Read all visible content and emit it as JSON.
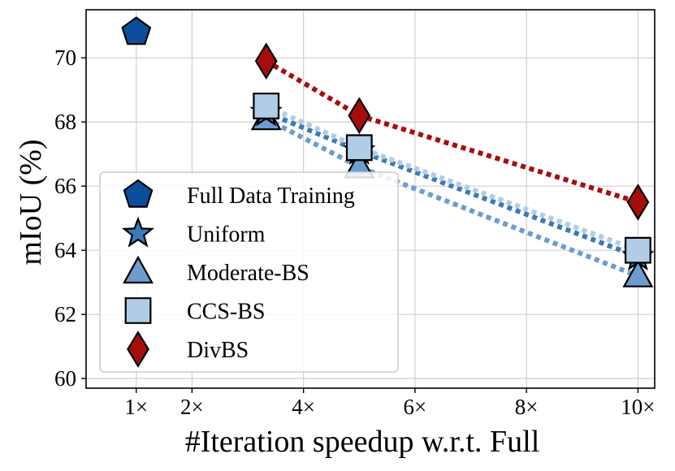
{
  "chart_data": {
    "type": "scatter",
    "xlabel": "#Iteration speedup w.r.t. Full",
    "ylabel": "mIoU (%)",
    "xlim": [
      0.1,
      10.3
    ],
    "ylim": [
      59.7,
      71.5
    ],
    "xticks": [
      1,
      2,
      4,
      6,
      8,
      10
    ],
    "xtick_labels": [
      "1×",
      "2×",
      "4×",
      "6×",
      "8×",
      "10×"
    ],
    "yticks": [
      60,
      62,
      64,
      66,
      68,
      70
    ],
    "ytick_labels": [
      "60",
      "62",
      "64",
      "66",
      "68",
      "70"
    ],
    "grid": true,
    "legend_position": "lower-left",
    "series": [
      {
        "name": "Full Data Training",
        "marker": "pentagon",
        "color": "#0b4f9c",
        "connected": false,
        "points": [
          {
            "x": 1,
            "y": 70.8
          }
        ]
      },
      {
        "name": "Uniform",
        "marker": "star",
        "color": "#3b7ab8",
        "connected": true,
        "points": [
          {
            "x": 3.33,
            "y": 68.3
          },
          {
            "x": 5,
            "y": 67.1
          },
          {
            "x": 10,
            "y": 63.8
          }
        ]
      },
      {
        "name": "Moderate-BS",
        "marker": "triangle",
        "color": "#6d9ccf",
        "connected": true,
        "points": [
          {
            "x": 3.33,
            "y": 68.1
          },
          {
            "x": 5,
            "y": 66.6
          },
          {
            "x": 10,
            "y": 63.2
          }
        ]
      },
      {
        "name": "CCS-BS",
        "marker": "square",
        "color": "#b1cde6",
        "connected": true,
        "points": [
          {
            "x": 3.33,
            "y": 68.5
          },
          {
            "x": 5,
            "y": 67.2
          },
          {
            "x": 10,
            "y": 64.0
          }
        ]
      },
      {
        "name": "DivBS",
        "marker": "diamond",
        "color": "#a80d0d",
        "connected": true,
        "points": [
          {
            "x": 3.33,
            "y": 69.9
          },
          {
            "x": 5,
            "y": 68.2
          },
          {
            "x": 10,
            "y": 65.5
          }
        ]
      }
    ]
  }
}
